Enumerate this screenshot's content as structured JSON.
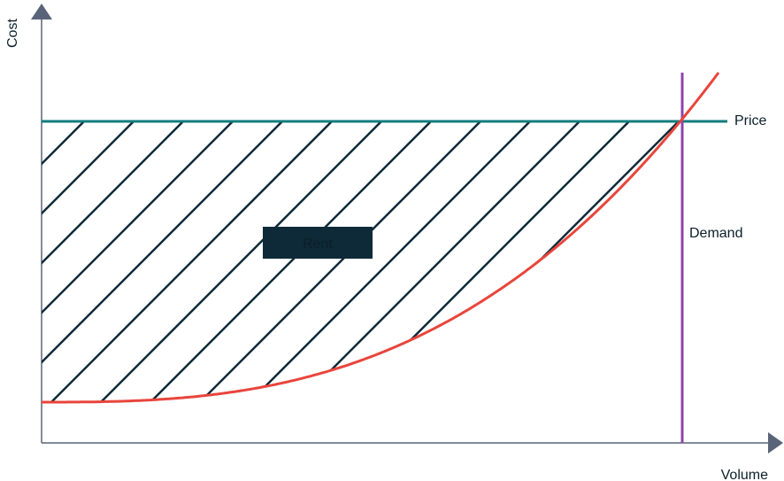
{
  "labels": {
    "y_axis": "Cost",
    "x_axis": "Volume",
    "price_line": "Price",
    "demand_line": "Demand",
    "area_label": "Rent"
  },
  "colors": {
    "axis": "#5a6478",
    "price_line": "#127c7c",
    "demand_line": "#8e44ad",
    "supply_curve": "#e8453c",
    "hatch": "#0e2a38",
    "label_box_bg": "#0e2a38",
    "label_box_text": "#ffffff",
    "text": "#0b1f2a"
  }
}
